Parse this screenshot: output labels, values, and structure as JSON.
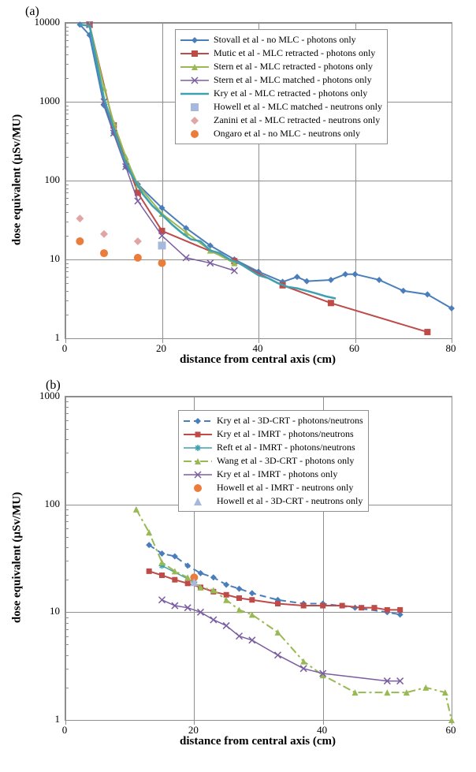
{
  "panel_a": {
    "label": "(a)",
    "xlabel": "distance from central axis (cm)",
    "ylabel": "dose equivalent (µSv/MU)",
    "xlim": [
      0,
      80
    ],
    "xticks": [
      0,
      20,
      40,
      60,
      80
    ],
    "ylim": [
      1,
      10000
    ],
    "yticks": [
      1,
      10,
      100,
      1000,
      10000
    ],
    "background_color": "#ffffff",
    "grid_color": "#8f8f8f",
    "axis_fontsize": 13,
    "label_fontsize": 15,
    "legend_fontsize": 12,
    "series": {
      "stovall": {
        "label": "Stovall et al - no MLC - photons only",
        "type": "line_marker",
        "color": "#4a7ebb",
        "marker": "diamond",
        "marker_size": 8,
        "line_width": 2,
        "dash": "solid",
        "data": [
          [
            3,
            9500
          ],
          [
            5,
            7000
          ],
          [
            8,
            900
          ],
          [
            10,
            400
          ],
          [
            12.5,
            150
          ],
          [
            15,
            90
          ],
          [
            20,
            45
          ],
          [
            25,
            25
          ],
          [
            30,
            15
          ],
          [
            35,
            10
          ],
          [
            40,
            7
          ],
          [
            45,
            5.2
          ],
          [
            48,
            6
          ],
          [
            50,
            5.3
          ],
          [
            55,
            5.5
          ],
          [
            58,
            6.5
          ],
          [
            60,
            6.5
          ],
          [
            65,
            5.5
          ],
          [
            70,
            4.0
          ],
          [
            75,
            3.6
          ],
          [
            80,
            2.4
          ]
        ]
      },
      "mutic": {
        "label": "Mutic et al - MLC retracted - photons only",
        "type": "line_marker",
        "color": "#be4b48",
        "marker": "square",
        "marker_size": 8,
        "line_width": 2,
        "dash": "solid",
        "data": [
          [
            5,
            9500
          ],
          [
            10,
            500
          ],
          [
            15,
            70
          ],
          [
            20,
            23
          ],
          [
            35,
            9.5
          ],
          [
            45,
            4.7
          ],
          [
            55,
            2.8
          ],
          [
            75,
            1.2
          ]
        ]
      },
      "stern_retracted": {
        "label": "Stern et al - MLC retracted - photons only",
        "type": "line_marker",
        "color": "#98b954",
        "marker": "triangle",
        "marker_size": 8,
        "line_width": 2,
        "dash": "solid",
        "data": [
          [
            5,
            9500
          ],
          [
            8,
            1500
          ],
          [
            10,
            540
          ],
          [
            12.5,
            200
          ],
          [
            15,
            88
          ],
          [
            20,
            38
          ],
          [
            25,
            22
          ],
          [
            30,
            13
          ],
          [
            35,
            9
          ]
        ]
      },
      "stern_matched": {
        "label": "Stern et al - MLC matched - photons only",
        "type": "line_marker",
        "color": "#7b5da1",
        "marker": "x",
        "marker_size": 8,
        "line_width": 1.5,
        "dash": "solid",
        "data": [
          [
            5,
            9500
          ],
          [
            8,
            1000
          ],
          [
            10,
            400
          ],
          [
            12.5,
            150
          ],
          [
            15,
            55
          ],
          [
            20,
            20
          ],
          [
            25,
            10.5
          ],
          [
            30,
            9
          ],
          [
            35,
            7.2
          ]
        ]
      },
      "kry_retracted": {
        "label": "Kry et al - MLC retracted - photons only",
        "type": "line",
        "color": "#3fa0b0",
        "line_width": 2.5,
        "dash": "solid",
        "data": [
          [
            3,
            9500
          ],
          [
            5,
            9200
          ],
          [
            7,
            2200
          ],
          [
            8,
            1100
          ],
          [
            10,
            460
          ],
          [
            12,
            200
          ],
          [
            14,
            110
          ],
          [
            16,
            68
          ],
          [
            18,
            48
          ],
          [
            20,
            37
          ],
          [
            22,
            28
          ],
          [
            24,
            22
          ],
          [
            26,
            18
          ],
          [
            28,
            17
          ],
          [
            30,
            13
          ],
          [
            32,
            12
          ],
          [
            34,
            10
          ],
          [
            36,
            9
          ],
          [
            38,
            7.5
          ],
          [
            40,
            6.3
          ],
          [
            42,
            5.8
          ],
          [
            44,
            5.0
          ],
          [
            46,
            4.5
          ],
          [
            48,
            4.3
          ],
          [
            50,
            4.0
          ],
          [
            52,
            3.7
          ],
          [
            54,
            3.4
          ],
          [
            56,
            3.2
          ]
        ]
      },
      "howell": {
        "label": "Howell et al - MLC matched - neutrons only",
        "type": "scatter",
        "color": "#a6b8dc",
        "marker": "square",
        "marker_size": 10,
        "data": [
          [
            20,
            15
          ]
        ]
      },
      "zanini": {
        "label": "Zanini et al - MLC retracted - neutrons only",
        "type": "scatter",
        "color": "#e2a5a6",
        "marker": "diamond",
        "marker_size": 10,
        "data": [
          [
            3,
            33
          ],
          [
            8,
            21
          ],
          [
            15,
            17
          ]
        ]
      },
      "ongaro": {
        "label": "Ongaro et al - no MLC - neutrons only",
        "type": "scatter",
        "color": "#eb7d3c",
        "marker": "circle",
        "marker_size": 10,
        "data": [
          [
            3,
            17
          ],
          [
            8,
            12
          ],
          [
            15,
            10.5
          ],
          [
            20,
            9
          ]
        ]
      }
    },
    "legend_order": [
      "stovall",
      "mutic",
      "stern_retracted",
      "stern_matched",
      "kry_retracted",
      "howell",
      "zanini",
      "ongaro"
    ]
  },
  "panel_b": {
    "label": "(b)",
    "xlabel": "distance from central axis (cm)",
    "ylabel": "dose equivalent (µSv/MU)",
    "xlim": [
      0,
      60
    ],
    "xticks": [
      0,
      20,
      40,
      60
    ],
    "ylim": [
      1,
      1000
    ],
    "yticks": [
      1,
      10,
      100,
      1000
    ],
    "background_color": "#ffffff",
    "grid_color": "#8f8f8f",
    "axis_fontsize": 13,
    "label_fontsize": 15,
    "legend_fontsize": 12,
    "series": {
      "kry_3dcrt": {
        "label": "Kry et al - 3D-CRT  - photons/neutrons",
        "type": "line_marker",
        "color": "#4a7ebb",
        "marker": "diamond",
        "marker_size": 8,
        "line_width": 2,
        "dash": "dashed",
        "data": [
          [
            13,
            42
          ],
          [
            15,
            35
          ],
          [
            17,
            33
          ],
          [
            19,
            27
          ],
          [
            21,
            23
          ],
          [
            23,
            21
          ],
          [
            25,
            18
          ],
          [
            27,
            16.5
          ],
          [
            29,
            15
          ],
          [
            33,
            13
          ],
          [
            37,
            12
          ],
          [
            40,
            12
          ],
          [
            45,
            11
          ],
          [
            50,
            10
          ],
          [
            52,
            9.5
          ]
        ]
      },
      "kry_imrt_pn": {
        "label": "Kry et al - IMRT - photons/neutrons",
        "type": "line_marker",
        "color": "#be4b48",
        "marker": "square",
        "marker_size": 7,
        "line_width": 2,
        "dash": "solid",
        "data": [
          [
            13,
            24
          ],
          [
            15,
            22
          ],
          [
            17,
            20
          ],
          [
            19,
            18.5
          ],
          [
            21,
            17
          ],
          [
            23,
            15.5
          ],
          [
            25,
            14.5
          ],
          [
            27,
            13.5
          ],
          [
            29,
            13
          ],
          [
            33,
            12
          ],
          [
            37,
            11.5
          ],
          [
            40,
            11.5
          ],
          [
            43,
            11.5
          ],
          [
            46,
            11
          ],
          [
            48,
            11
          ],
          [
            50,
            10.5
          ],
          [
            52,
            10.5
          ]
        ]
      },
      "reft_imrt": {
        "label": "Reft et al - IMRT - photons/neutrons",
        "type": "line_marker",
        "color": "#3fa0b0",
        "marker": "star",
        "marker_size": 8,
        "line_width": 1.5,
        "dash": "solid",
        "data": [
          [
            15,
            27
          ],
          [
            20,
            19
          ]
        ]
      },
      "wang_3dcrt": {
        "label": "Wang et al - 3D-CRT  - photons only",
        "type": "line_marker",
        "color": "#98b954",
        "marker": "triangle",
        "marker_size": 8,
        "line_width": 2,
        "dash": "dashdot",
        "data": [
          [
            11,
            90
          ],
          [
            13,
            55
          ],
          [
            15,
            29
          ],
          [
            17,
            24
          ],
          [
            19,
            21
          ],
          [
            21,
            17
          ],
          [
            23,
            16
          ],
          [
            25,
            13
          ],
          [
            27,
            10.5
          ],
          [
            29,
            9.5
          ],
          [
            33,
            6.5
          ],
          [
            37,
            3.5
          ],
          [
            40,
            2.6
          ],
          [
            45,
            1.8
          ],
          [
            50,
            1.8
          ],
          [
            53,
            1.8
          ],
          [
            56,
            2.0
          ],
          [
            59,
            1.8
          ],
          [
            60,
            1.0
          ]
        ]
      },
      "kry_imrt_p": {
        "label": "Kry et al - IMRT - photons only",
        "type": "line_marker",
        "color": "#7b5da1",
        "marker": "x",
        "marker_size": 8,
        "line_width": 1.5,
        "dash": "solid",
        "data": [
          [
            15,
            13
          ],
          [
            17,
            11.5
          ],
          [
            19,
            11
          ],
          [
            21,
            10
          ],
          [
            23,
            8.5
          ],
          [
            25,
            7.5
          ],
          [
            27,
            6
          ],
          [
            29,
            5.5
          ],
          [
            33,
            4
          ],
          [
            37,
            3.0
          ],
          [
            40,
            2.7
          ],
          [
            50,
            2.3
          ],
          [
            52,
            2.3
          ]
        ]
      },
      "howell_imrt": {
        "label": "Howell et al - IMRT - neutrons only",
        "type": "scatter",
        "color": "#eb7d3c",
        "marker": "circle",
        "marker_size": 10,
        "data": [
          [
            20,
            21
          ]
        ]
      },
      "howell_3dcrt": {
        "label": "Howell et al - 3D-CRT  - neutrons only",
        "type": "scatter",
        "color": "#a6b8dc",
        "marker": "triangle",
        "marker_size": 10,
        "data": [
          [
            20,
            19
          ]
        ]
      }
    },
    "legend_order": [
      "kry_3dcrt",
      "kry_imrt_pn",
      "reft_imrt",
      "wang_3dcrt",
      "kry_imrt_p",
      "howell_imrt",
      "howell_3dcrt"
    ]
  }
}
